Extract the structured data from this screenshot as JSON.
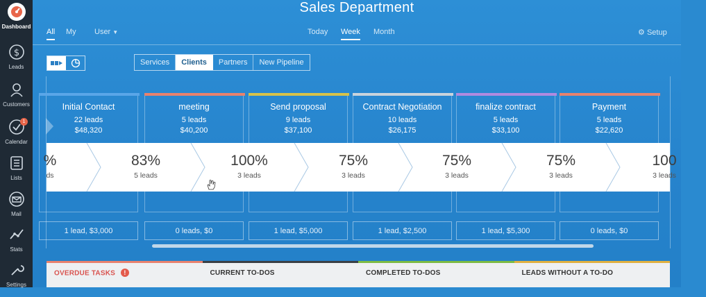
{
  "app": {
    "title": "Sales Department"
  },
  "sidebar": {
    "items": [
      {
        "label": "Dashboard",
        "icon": "dashboard-icon",
        "active": true
      },
      {
        "label": "Leads",
        "icon": "dollar-icon"
      },
      {
        "label": "Customers",
        "icon": "customers-icon"
      },
      {
        "label": "Calendar",
        "icon": "calendar-check-icon",
        "badge": "1"
      },
      {
        "label": "Lists",
        "icon": "list-icon"
      },
      {
        "label": "Mail",
        "icon": "mail-icon"
      },
      {
        "label": "Stats",
        "icon": "stats-icon"
      },
      {
        "label": "Settings",
        "icon": "settings-icon"
      }
    ]
  },
  "nav": {
    "scope_all": "All",
    "scope_my": "My",
    "user_filter": "User",
    "period_today": "Today",
    "period_week": "Week",
    "period_month": "Month",
    "setup": "Setup"
  },
  "filters": {
    "items": [
      "Services",
      "Clients",
      "Partners",
      "New Pipeline"
    ],
    "selected": "Clients"
  },
  "stages": [
    {
      "name": "Initial Contact",
      "leads": "22 leads",
      "amount": "$48,320",
      "color": "#5aa6e8",
      "footer": "1 lead, $3,000"
    },
    {
      "name": "meeting",
      "leads": "5 leads",
      "amount": "$40,200",
      "color": "#e8826e",
      "footer": "0 leads, $0"
    },
    {
      "name": "Send proposal",
      "leads": "9 leads",
      "amount": "$37,100",
      "color": "#d6c24a",
      "footer": "1 lead, $5,000"
    },
    {
      "name": "Contract Negotiation",
      "leads": "10 leads",
      "amount": "$26,175",
      "color": "#c9d3dc",
      "footer": "1 lead, $2,500"
    },
    {
      "name": "finalize contract",
      "leads": "5 leads",
      "amount": "$33,100",
      "color": "#b08ae0",
      "footer": "1 lead, $5,300"
    },
    {
      "name": "Payment",
      "leads": "5 leads",
      "amount": "$22,620",
      "color": "#e8826e",
      "footer": "0 leads, $0"
    }
  ],
  "conversions": [
    {
      "pct": "%",
      "cnt": "ds"
    },
    {
      "pct": "83%",
      "cnt": "5 leads"
    },
    {
      "pct": "100%",
      "cnt": "3 leads"
    },
    {
      "pct": "75%",
      "cnt": "3 leads"
    },
    {
      "pct": "75%",
      "cnt": "3 leads"
    },
    {
      "pct": "75%",
      "cnt": "3 leads"
    },
    {
      "pct": "100",
      "cnt": "3 leads"
    }
  ],
  "bottom_tabs": [
    {
      "label": "OVERDUE TASKS",
      "color": "#e8826e"
    },
    {
      "label": "CURRENT TO-DOS",
      "color": "#3a3f45"
    },
    {
      "label": "COMPLETED TO-DOS",
      "color": "#7dbb43"
    },
    {
      "label": "LEADS WITHOUT A TO-DO",
      "color": "#e0b040"
    }
  ]
}
